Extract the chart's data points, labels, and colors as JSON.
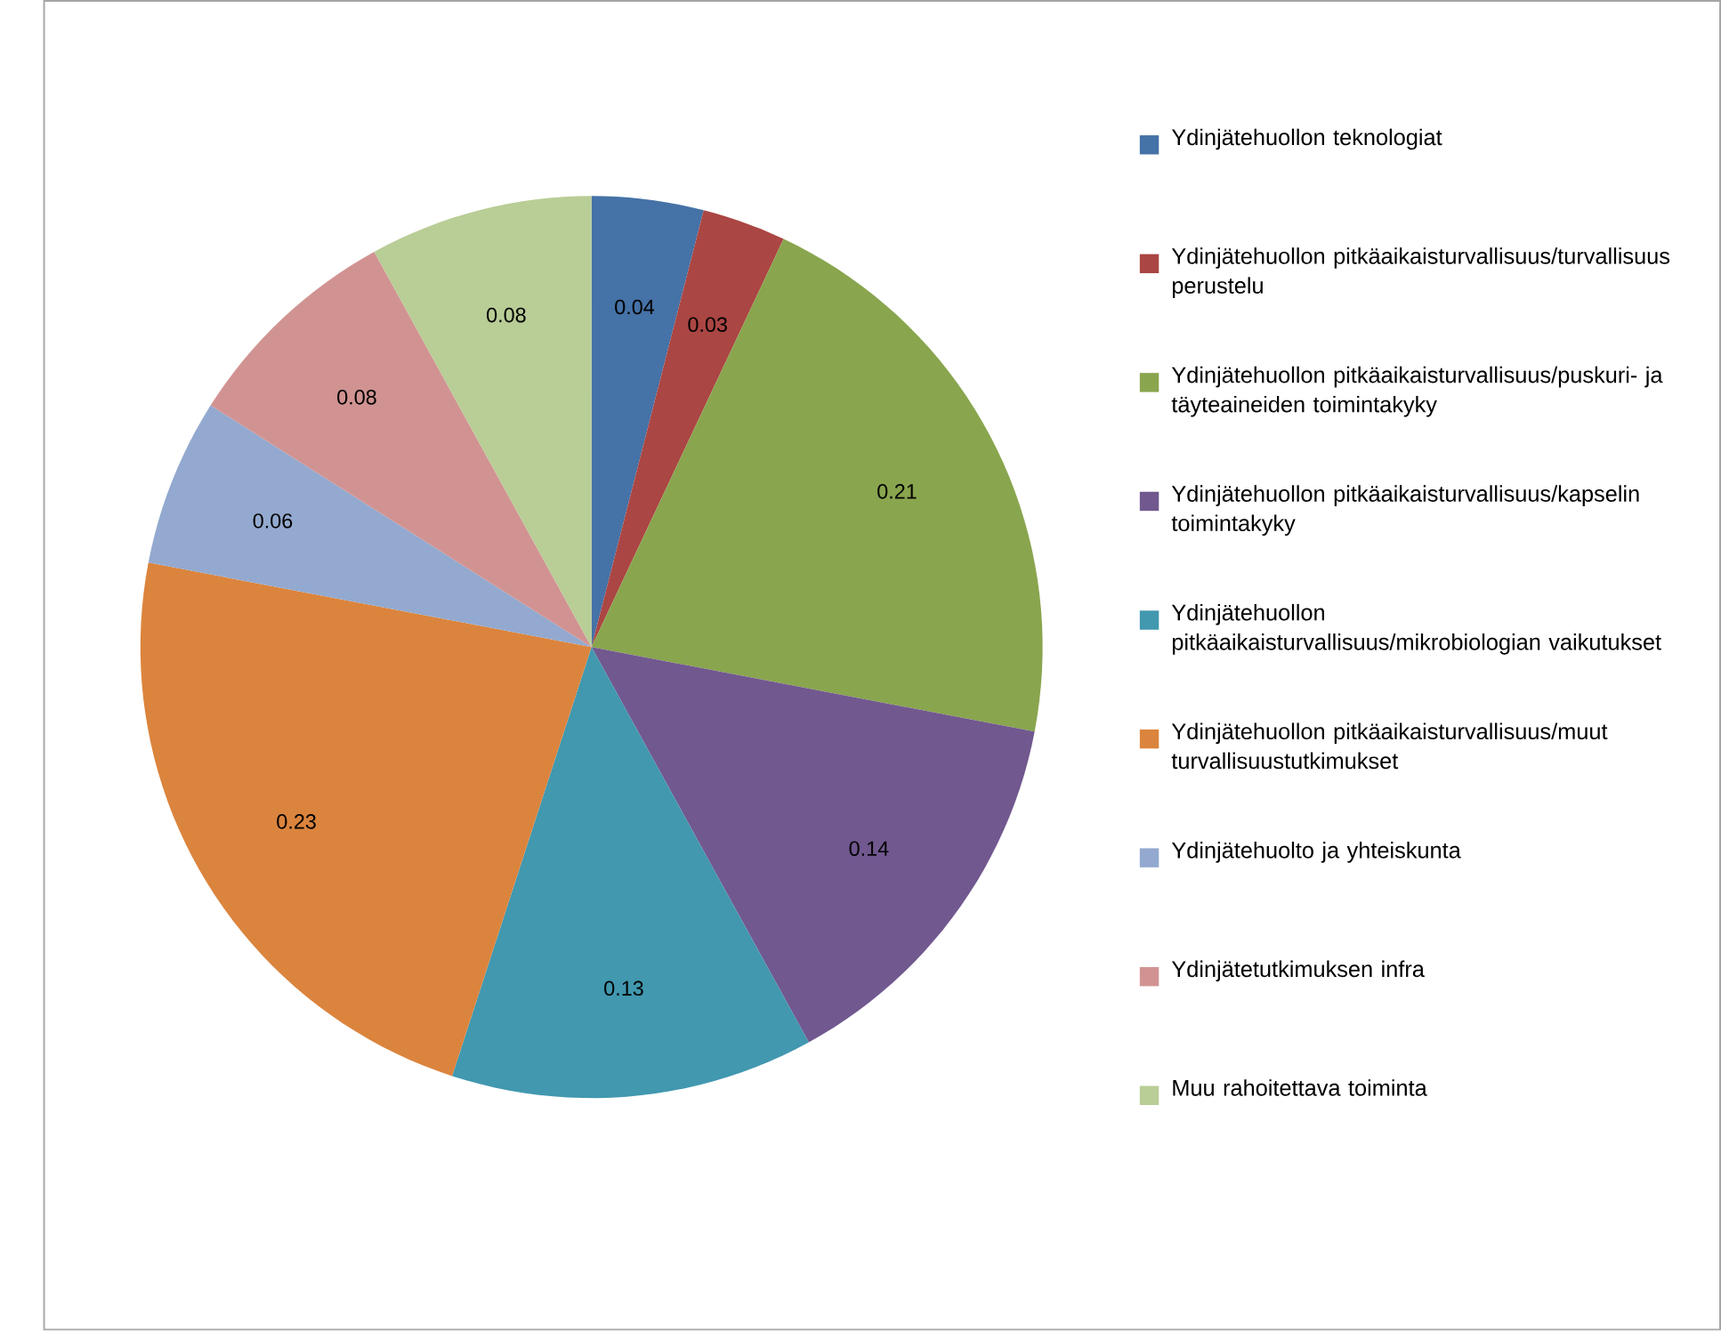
{
  "chart_data": {
    "type": "pie",
    "categories": [
      "Ydinjätehuollon teknologiat",
      "Ydinjätehuollon pitkäaikaisturvallisuus/turvallisuus perustelu",
      "Ydinjätehuollon pitkäaikaisturvallisuus/puskuri- ja täyteaineiden toimintakyky",
      "Ydinjätehuollon pitkäaikaisturvallisuus/kapselin toimintakyky",
      "Ydinjätehuollon pitkäaikaisturvallisuus/mikrobiologian vaikutukset",
      "Ydinjätehuollon pitkäaikaisturvallisuus/muut turvallisuustutkimukset",
      "Ydinjätehuolto ja yhteiskunta",
      "Ydinjätetutkimuksen infra",
      "Muu rahoitettava toiminta"
    ],
    "values": [
      0.04,
      0.03,
      0.21,
      0.14,
      0.13,
      0.23,
      0.06,
      0.08,
      0.08
    ],
    "colors": [
      "#4572a7",
      "#aa4643",
      "#89a54e",
      "#71588f",
      "#4198af",
      "#db843d",
      "#93a9cf",
      "#d19392",
      "#b9cd96"
    ],
    "data_labels": true,
    "legend": "right"
  }
}
